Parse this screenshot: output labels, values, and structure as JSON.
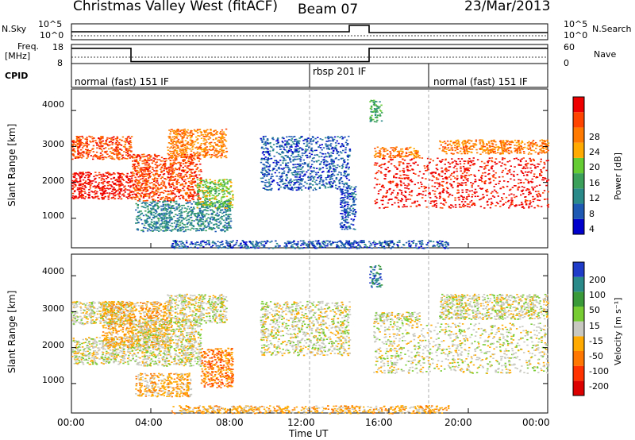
{
  "header": {
    "title": "Christmas Valley West (fitACF)",
    "beam": "Beam 07",
    "date": "23/Mar/2013"
  },
  "nsky_panel": {
    "left_label": "N.Sky",
    "left_ticks": [
      "10^5",
      "10^0"
    ],
    "right_label": "N.Search",
    "right_ticks": [
      "10^5",
      "10^0"
    ]
  },
  "freq_panel": {
    "left_label_line1": "Freq.",
    "left_label_line2": "[MHz]",
    "left_ticks": [
      "18",
      "8"
    ],
    "right_label": "Nave",
    "right_ticks": [
      "60",
      "0"
    ]
  },
  "cpid": {
    "label": "CPID",
    "segments": [
      {
        "name": "normal (fast) 151 IF",
        "start_hour": 0
      },
      {
        "name": "rbsp 201 IF",
        "start_hour": 12
      },
      {
        "name": "normal (fast) 151 IF",
        "start_hour": 18
      }
    ]
  },
  "power_panel": {
    "ylabel": "Slant Range [km]",
    "yticks": [
      "4000",
      "3000",
      "2000",
      "1000"
    ],
    "colorbar_label": "Power [dB]",
    "colorbar_ticks": [
      "28",
      "24",
      "20",
      "16",
      "12",
      "8",
      "4"
    ],
    "colors": [
      "#0000cc",
      "#1e5ab4",
      "#2a8a8a",
      "#3aa05a",
      "#66cc33",
      "#ffaa00",
      "#ff7a00",
      "#ff4400",
      "#ee0000"
    ]
  },
  "velocity_panel": {
    "ylabel": "Slant Range [km]",
    "yticks": [
      "4000",
      "3000",
      "2000",
      "1000"
    ],
    "colorbar_label": "Velocity [m s⁻¹]",
    "colorbar_ticks": [
      "200",
      "100",
      "50",
      "15",
      "-15",
      "-50",
      "-100",
      "-200"
    ],
    "colors": [
      "#1e3cc8",
      "#2a8a8a",
      "#3a9a3a",
      "#77cc33",
      "#c8c8c0",
      "#ffaa00",
      "#ff7700",
      "#ff3300",
      "#dd0000"
    ],
    "ground_scatter_color": "#c8c8c0"
  },
  "x_axis": {
    "label": "Time UT",
    "ticks": [
      "00:00",
      "04:00",
      "08:00",
      "12:00",
      "16:00",
      "20:00",
      "00:00"
    ]
  },
  "chart_data": {
    "type": "heatmap",
    "title": "Christmas Valley West (fitACF)",
    "xlabel": "Time UT",
    "ylabel": "Slant Range [km]",
    "xlim_hours": [
      0,
      24
    ],
    "ylim_km": [
      180,
      4600
    ],
    "power_scatter": [
      {
        "t0": 0.0,
        "t1": 3.0,
        "r0": 2650,
        "r1": 3300,
        "level": 7
      },
      {
        "t0": 0.0,
        "t1": 3.0,
        "r0": 1550,
        "r1": 2300,
        "level": 8
      },
      {
        "t0": 3.0,
        "t1": 6.5,
        "r0": 1500,
        "r1": 2800,
        "level": 7
      },
      {
        "t0": 4.8,
        "t1": 7.8,
        "r0": 2700,
        "r1": 3500,
        "level": 6
      },
      {
        "t0": 3.2,
        "t1": 8.0,
        "r0": 650,
        "r1": 1500,
        "level": 2
      },
      {
        "t0": 6.3,
        "t1": 8.1,
        "r0": 1300,
        "r1": 2100,
        "level": 4
      },
      {
        "t0": 9.5,
        "t1": 14.0,
        "r0": 1800,
        "r1": 3300,
        "level": 1
      },
      {
        "t0": 13.5,
        "t1": 14.3,
        "r0": 700,
        "r1": 1900,
        "level": 1
      },
      {
        "t0": 15.0,
        "t1": 15.6,
        "r0": 3700,
        "r1": 4300,
        "level": 3
      },
      {
        "t0": 15.2,
        "t1": 24.0,
        "r0": 1300,
        "r1": 2700,
        "level": 8
      },
      {
        "t0": 15.2,
        "t1": 17.5,
        "r0": 2700,
        "r1": 3000,
        "level": 6
      },
      {
        "t0": 18.5,
        "t1": 24.0,
        "r0": 2800,
        "r1": 3200,
        "level": 6
      },
      {
        "t0": 5.0,
        "t1": 19.0,
        "r0": 180,
        "r1": 400,
        "level": 1
      }
    ],
    "velocity_scatter": [
      {
        "t0": 0.0,
        "t1": 3.0,
        "r0": 2650,
        "r1": 3300,
        "level": 4
      },
      {
        "t0": 0.0,
        "t1": 3.0,
        "r0": 1550,
        "r1": 2300,
        "level": 4
      },
      {
        "t0": 1.5,
        "t1": 5.0,
        "r0": 2000,
        "r1": 3300,
        "level": 5
      },
      {
        "t0": 3.0,
        "t1": 6.5,
        "r0": 1500,
        "r1": 2800,
        "level": 4
      },
      {
        "t0": 4.8,
        "t1": 7.8,
        "r0": 2700,
        "r1": 3500,
        "level": 4
      },
      {
        "t0": 3.2,
        "t1": 6.0,
        "r0": 650,
        "r1": 1300,
        "level": 5
      },
      {
        "t0": 6.5,
        "t1": 8.1,
        "r0": 900,
        "r1": 2000,
        "level": 6
      },
      {
        "t0": 9.5,
        "t1": 14.0,
        "r0": 1800,
        "r1": 3300,
        "level": 4
      },
      {
        "t0": 15.2,
        "t1": 24.0,
        "r0": 1300,
        "r1": 2700,
        "level": 4
      },
      {
        "t0": 15.2,
        "t1": 17.5,
        "r0": 2700,
        "r1": 3000,
        "level": 4
      },
      {
        "t0": 18.5,
        "t1": 24.0,
        "r0": 2800,
        "r1": 3500,
        "level": 4
      },
      {
        "t0": 15.0,
        "t1": 15.6,
        "r0": 3700,
        "r1": 4300,
        "level": 1
      },
      {
        "t0": 5.0,
        "t1": 19.0,
        "r0": 180,
        "r1": 400,
        "level": 5
      }
    ],
    "frequency_mhz": [
      {
        "t0": 0.0,
        "t1": 3.0,
        "value": 16
      },
      {
        "t0": 3.0,
        "t1": 15.0,
        "value": 9
      },
      {
        "t0": 15.0,
        "t1": 24.0,
        "value": 16
      }
    ],
    "nave": [
      {
        "t0": 0.0,
        "t1": 24.0,
        "value": 20
      }
    ],
    "nsky": [
      {
        "t0": 0.0,
        "t1": 14.0,
        "value": 0.5
      },
      {
        "t0": 14.0,
        "t1": 15.0,
        "value": 0.9
      },
      {
        "t0": 15.0,
        "t1": 24.0,
        "value": 0.45
      }
    ]
  }
}
